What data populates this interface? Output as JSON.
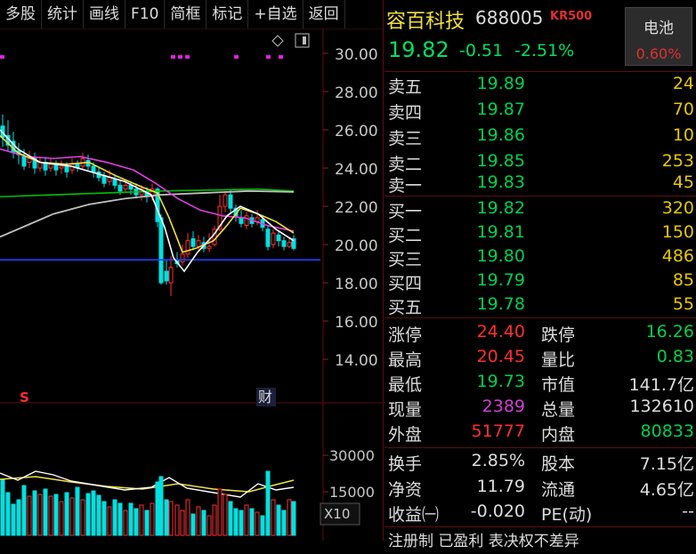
{
  "toolbar": {
    "items": [
      "多股",
      "统计",
      "画线",
      "F10",
      "简框",
      "标记",
      "+自选",
      "返回"
    ]
  },
  "chart": {
    "price_ticks": [
      "30.00",
      "28.00",
      "26.00",
      "24.00",
      "22.00",
      "20.00",
      "18.00",
      "16.00",
      "14.00"
    ],
    "volume_ticks": [
      "30000",
      "15000"
    ],
    "volume_unit": "X10",
    "marker_s": "S",
    "marker_cai": "财",
    "colors": {
      "up": "#ff3030",
      "down": "#00e0e0",
      "ma5": "#ffffff",
      "ma10": "#f0e040",
      "ma20": "#e040e0",
      "ma60": "#00c000",
      "ma120": "#c0c0c0",
      "ma250": "#2040ff"
    }
  },
  "quote": {
    "name": "容百科技",
    "code": "688005",
    "tag": "KR500",
    "price": "19.82",
    "change": "-0.51",
    "change_pct": "-2.51%",
    "sector": {
      "name": "电池",
      "pct": "0.60%"
    },
    "asks": [
      {
        "label": "卖五",
        "price": "19.89",
        "vol": "24"
      },
      {
        "label": "卖四",
        "price": "19.87",
        "vol": "70"
      },
      {
        "label": "卖三",
        "price": "19.86",
        "vol": "10"
      },
      {
        "label": "卖二",
        "price": "19.85",
        "vol": "253"
      },
      {
        "label": "卖一",
        "price": "19.83",
        "vol": "45"
      }
    ],
    "bids": [
      {
        "label": "买一",
        "price": "19.82",
        "vol": "320"
      },
      {
        "label": "买二",
        "price": "19.81",
        "vol": "150"
      },
      {
        "label": "买三",
        "price": "19.80",
        "vol": "486"
      },
      {
        "label": "买四",
        "price": "19.79",
        "vol": "85"
      },
      {
        "label": "买五",
        "price": "19.78",
        "vol": "55"
      }
    ],
    "stats": [
      {
        "l1": "涨停",
        "v1": "24.40",
        "l2": "跌停",
        "v2": "16.26"
      },
      {
        "l1": "最高",
        "v1": "20.45",
        "l2": "量比",
        "v2": "0.83"
      },
      {
        "l1": "最低",
        "v1": "19.73",
        "l2": "市值",
        "v2": "141.7亿"
      },
      {
        "l1": "现量",
        "v1": "2389",
        "l2": "总量",
        "v2": "132610"
      },
      {
        "l1": "外盘",
        "v1": "51777",
        "l2": "内盘",
        "v2": "80833"
      }
    ],
    "finance": [
      {
        "l1": "换手",
        "v1": "2.85%",
        "l2": "股本",
        "v2": "7.15亿"
      },
      {
        "l1": "净资",
        "v1": "11.79",
        "l2": "流通",
        "v2": "4.65亿"
      },
      {
        "l1": "收益㈠",
        "v1": "-0.020",
        "l2": "PE(动)",
        "v2": "--"
      }
    ],
    "footer": "注册制 已盈利 表决权不差异"
  }
}
